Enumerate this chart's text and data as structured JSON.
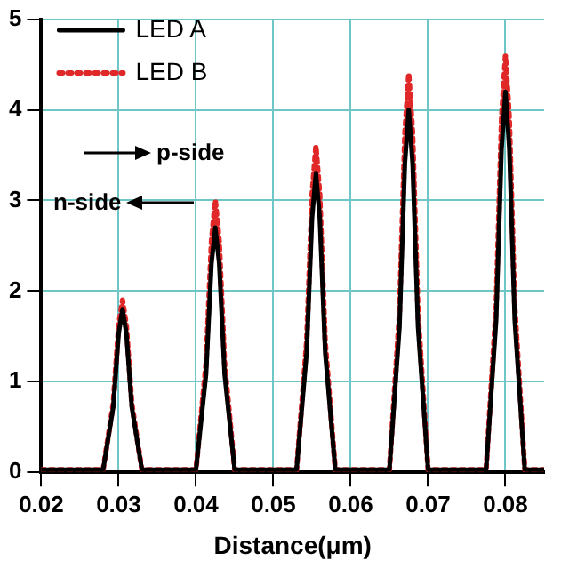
{
  "chart_data": {
    "type": "line",
    "xlabel": "Distance(μm)",
    "x": [
      0.02,
      0.028,
      0.0293,
      0.03,
      0.0305,
      0.031,
      0.0317,
      0.033,
      0.04,
      0.0413,
      0.042,
      0.0425,
      0.043,
      0.0437,
      0.045,
      0.053,
      0.0543,
      0.055,
      0.0555,
      0.056,
      0.0567,
      0.058,
      0.065,
      0.0663,
      0.067,
      0.0675,
      0.068,
      0.0687,
      0.07,
      0.0775,
      0.0788,
      0.0795,
      0.08,
      0.0805,
      0.0812,
      0.0825,
      0.085
    ],
    "series": [
      {
        "name": "LED A",
        "color": "#000000",
        "line_style": "solid",
        "values": [
          0.03,
          0.03,
          0.72,
          1.53,
          1.8,
          1.53,
          0.72,
          0.03,
          0.03,
          1.08,
          2.3,
          2.7,
          2.3,
          1.08,
          0.03,
          0.03,
          1.32,
          2.8,
          3.3,
          2.8,
          1.32,
          0.03,
          0.03,
          1.6,
          3.4,
          4.0,
          3.4,
          1.6,
          0.03,
          0.03,
          1.68,
          3.57,
          4.2,
          3.57,
          1.68,
          0.03,
          0.03
        ]
      },
      {
        "name": "LED B",
        "color": "#e02828",
        "line_style": "dotted",
        "values": [
          0.03,
          0.03,
          0.76,
          1.62,
          1.9,
          1.62,
          0.76,
          0.03,
          0.03,
          1.2,
          2.55,
          3.0,
          2.55,
          1.2,
          0.03,
          0.03,
          1.44,
          3.06,
          3.6,
          3.06,
          1.44,
          0.03,
          0.03,
          1.76,
          3.74,
          4.4,
          3.74,
          1.76,
          0.03,
          0.03,
          1.84,
          3.91,
          4.6,
          3.91,
          1.84,
          0.03,
          0.03
        ]
      }
    ],
    "xlim": [
      0.02,
      0.085
    ],
    "xticks": [
      0.02,
      0.03,
      0.04,
      0.05,
      0.06,
      0.07,
      0.08
    ],
    "ylim": [
      0,
      5
    ],
    "yticks": [
      0,
      1,
      2,
      3,
      4,
      5
    ],
    "annotations": [
      "p-side",
      "n-side"
    ],
    "grid": true,
    "legend": "top left",
    "marker": "none"
  }
}
